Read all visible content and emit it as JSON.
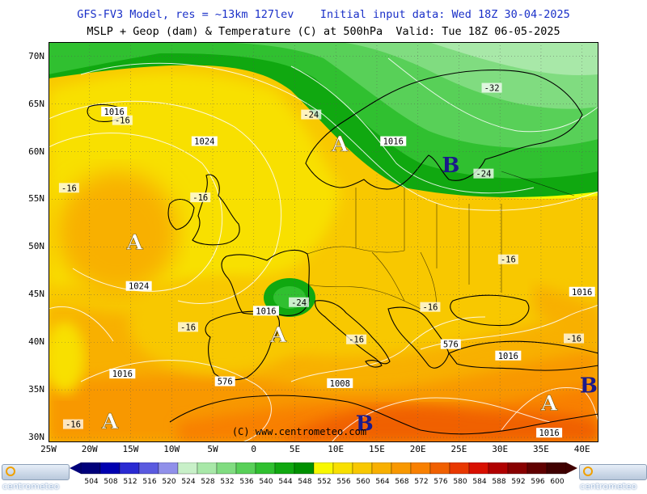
{
  "header": {
    "line1": "GFS-FV3 Model, res = ~13km 127lev    Initial input data: Wed 18Z 30-04-2025",
    "line2": "MSLP + Geop (dam) & Temperature (C) at 500hPa  Valid: Tue 18Z 06-05-2025"
  },
  "axes": {
    "lat_labels": [
      "70N",
      "65N",
      "60N",
      "55N",
      "50N",
      "45N",
      "40N",
      "35N",
      "30N"
    ],
    "lon_labels": [
      "25W",
      "20W",
      "15W",
      "10W",
      "5W",
      "0",
      "5E",
      "10E",
      "15E",
      "20E",
      "25E",
      "30E",
      "35E",
      "40E"
    ]
  },
  "pressure_centers": [
    {
      "type": "A",
      "lon": -14.5,
      "lat": 50.5
    },
    {
      "type": "A",
      "lon": 10.5,
      "lat": 60.8
    },
    {
      "type": "A",
      "lon": 3,
      "lat": 40.8
    },
    {
      "type": "A",
      "lon": -17.5,
      "lat": 31.7
    },
    {
      "type": "A",
      "lon": 36,
      "lat": 33.6
    },
    {
      "type": "B",
      "lon": 24,
      "lat": 58.6
    },
    {
      "type": "B",
      "lon": 13.5,
      "lat": 31.5
    },
    {
      "type": "B",
      "lon": 40.8,
      "lat": 35.5
    }
  ],
  "isobar_labels": [
    {
      "text": "1016",
      "lon": -17,
      "lat": 64.2
    },
    {
      "text": "1024",
      "lon": -6,
      "lat": 61.1
    },
    {
      "text": "1016",
      "lon": 17,
      "lat": 61.1
    },
    {
      "text": "1024",
      "lon": -14,
      "lat": 45.9
    },
    {
      "text": "1016",
      "lon": 1.5,
      "lat": 43.3
    },
    {
      "text": "1016",
      "lon": -16,
      "lat": 36.7
    },
    {
      "text": "576",
      "lon": -3.5,
      "lat": 35.9
    },
    {
      "text": "1008",
      "lon": 10.5,
      "lat": 35.7
    },
    {
      "text": "576",
      "lon": 24,
      "lat": 39.8
    },
    {
      "text": "1016",
      "lon": 31,
      "lat": 38.6
    },
    {
      "text": "1016",
      "lon": 40,
      "lat": 45.3
    },
    {
      "text": "1016",
      "lon": 36,
      "lat": 30.5
    }
  ],
  "temperature_labels": [
    {
      "text": "-16",
      "lon": -16,
      "lat": 63.3
    },
    {
      "text": "-24",
      "lon": 7,
      "lat": 63.9
    },
    {
      "text": "-32",
      "lon": 29,
      "lat": 66.7
    },
    {
      "text": "-24",
      "lon": 28,
      "lat": 57.7
    },
    {
      "text": "-16",
      "lon": -22.5,
      "lat": 56.2
    },
    {
      "text": "-16",
      "lon": -6.5,
      "lat": 55.2
    },
    {
      "text": "-16",
      "lon": 31,
      "lat": 48.7
    },
    {
      "text": "-24",
      "lon": 5.5,
      "lat": 44.2
    },
    {
      "text": "-16",
      "lon": 21.5,
      "lat": 43.7
    },
    {
      "text": "-16",
      "lon": -8,
      "lat": 41.6
    },
    {
      "text": "-16",
      "lon": 12.5,
      "lat": 40.3
    },
    {
      "text": "-16",
      "lon": 39,
      "lat": 40.4
    },
    {
      "text": "-16",
      "lon": -22,
      "lat": 31.4
    }
  ],
  "credit": "(C) www.centrometeo.com",
  "colorbar": {
    "levels": [
      "504",
      "508",
      "512",
      "516",
      "520",
      "524",
      "528",
      "532",
      "536",
      "540",
      "544",
      "548",
      "552",
      "556",
      "560",
      "564",
      "568",
      "572",
      "576",
      "580",
      "584",
      "588",
      "592",
      "596",
      "600"
    ],
    "colors": [
      "#00007a",
      "#0000b0",
      "#2a2ad2",
      "#5a5ae0",
      "#9090ea",
      "#c8f0c8",
      "#a8e8a8",
      "#80dc80",
      "#58d058",
      "#30c030",
      "#10a810",
      "#009000",
      "#f8f800",
      "#f8e000",
      "#f8c800",
      "#f8b000",
      "#f89800",
      "#f88000",
      "#f06000",
      "#e83800",
      "#d81000",
      "#b00000",
      "#880000",
      "#600000",
      "#400000"
    ]
  },
  "logos": {
    "left": "centrometeo",
    "right": "centrometeo"
  }
}
